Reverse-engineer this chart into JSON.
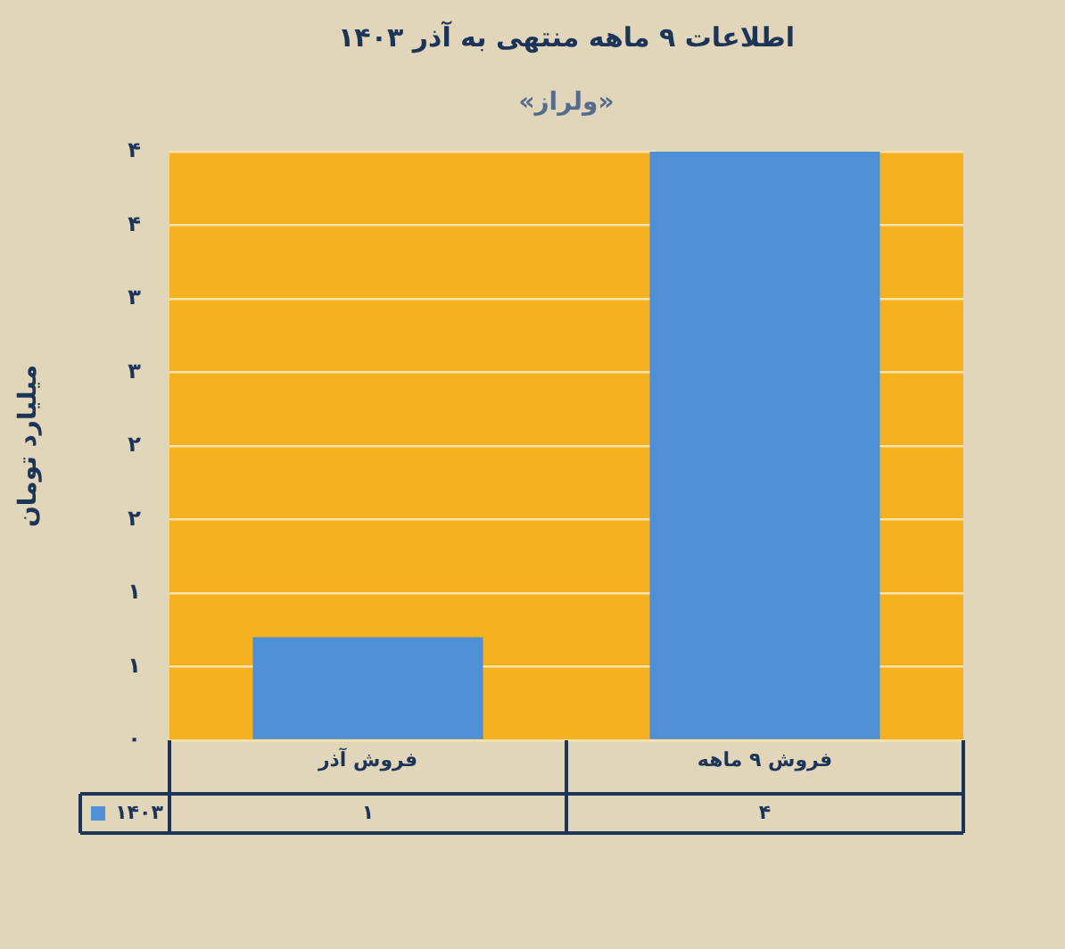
{
  "chart_data": {
    "type": "bar",
    "title": "اطلاعات ۹ ماهه منتهی به آذر ۱۴۰۳",
    "subtitle": "«ولراز»",
    "ylabel": "میلیارد تومان",
    "categories": [
      "فروش آذر",
      "فروش ۹ ماهه"
    ],
    "series": [
      {
        "name": "۱۴۰۳",
        "color": "#4f8fd6",
        "values": [
          0.7,
          4
        ],
        "value_labels": [
          "۱",
          "۴"
        ]
      }
    ],
    "ylim": [
      0,
      4
    ],
    "yticks": [
      {
        "value": 0,
        "label": "۰"
      },
      {
        "value": 0.5,
        "label": "۱"
      },
      {
        "value": 1,
        "label": "۱"
      },
      {
        "value": 1.5,
        "label": "۲"
      },
      {
        "value": 2,
        "label": "۲"
      },
      {
        "value": 2.5,
        "label": "۳"
      },
      {
        "value": 3,
        "label": "۳"
      },
      {
        "value": 3.5,
        "label": "۴"
      },
      {
        "value": 4,
        "label": "۴"
      }
    ],
    "grid": "y",
    "legend": "bottom"
  }
}
